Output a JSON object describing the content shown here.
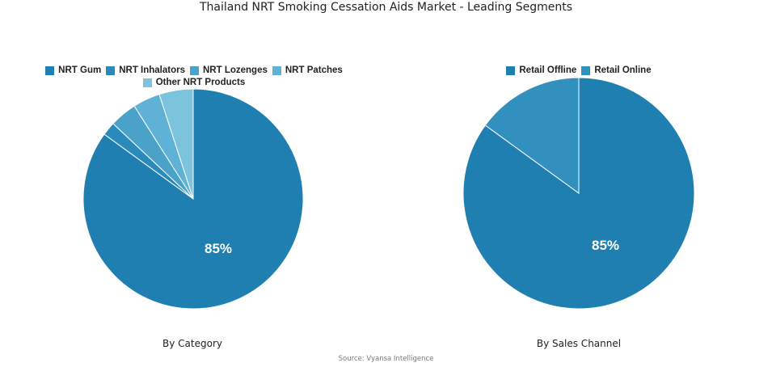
{
  "title": "Thailand NRT Smoking Cessation Aids Market - Leading Segments",
  "source": "Source: Vyansa Intelligence",
  "colors": {
    "nrt_gum": "#1f7fb0",
    "nrt_inhalators": "#2a8bba",
    "nrt_lozenges": "#4aa2c9",
    "nrt_patches": "#5fb2d5",
    "other_nrt": "#7cc3de",
    "retail_offline": "#1f7fb0",
    "retail_online": "#3190be"
  },
  "charts": {
    "category": {
      "subtitle": "By Category",
      "label": "85%",
      "legend": [
        "NRT Gum",
        "NRT Inhalators",
        "NRT Lozenges",
        "NRT Patches",
        "Other NRT Products"
      ]
    },
    "channel": {
      "subtitle": "By Sales Channel",
      "label": "85%",
      "legend": [
        "Retail Offline",
        "Retail Online"
      ]
    }
  },
  "chart_data": [
    {
      "type": "pie",
      "title": "By Category",
      "categories": [
        "NRT Gum",
        "NRT Inhalators",
        "NRT Lozenges",
        "NRT Patches",
        "Other NRT Products"
      ],
      "values": [
        85,
        2,
        4,
        4,
        5
      ],
      "labels_shown": {
        "NRT Gum": "85%"
      },
      "legend_position": "top"
    },
    {
      "type": "pie",
      "title": "By Sales Channel",
      "categories": [
        "Retail Offline",
        "Retail Online"
      ],
      "values": [
        85,
        15
      ],
      "labels_shown": {
        "Retail Offline": "85%"
      },
      "legend_position": "top"
    }
  ]
}
